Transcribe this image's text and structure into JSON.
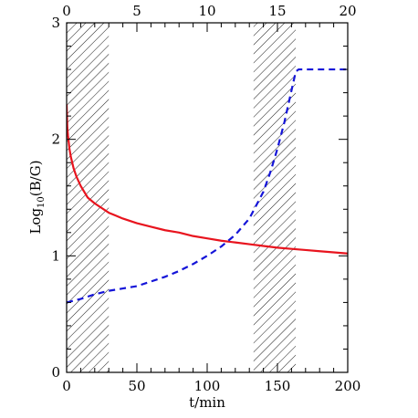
{
  "chart_data": {
    "type": "line",
    "xlabel": "t/min",
    "ylabel": {
      "base": "Log",
      "sub": "10",
      "rest": "(B/G)"
    },
    "xlim": [
      0,
      200
    ],
    "ylim": [
      0,
      3
    ],
    "top_xlim": [
      0,
      20
    ],
    "x_ticks": [
      "0",
      "50",
      "100",
      "150",
      "200"
    ],
    "y_ticks": [
      "0",
      "1",
      "2",
      "3"
    ],
    "top_ticks": [
      "0",
      "5",
      "10",
      "15",
      "20"
    ],
    "shaded_regions": [
      [
        0,
        30
      ],
      [
        133,
        163
      ]
    ],
    "series": [
      {
        "style": "solid",
        "color": "#e8141e",
        "x": [
          0,
          0.5,
          1,
          2,
          3,
          5,
          7,
          10,
          15,
          20,
          30,
          40,
          50,
          60,
          70,
          80,
          90,
          100,
          110,
          120,
          130,
          140,
          150,
          160,
          170,
          180,
          190,
          200
        ],
        "y": [
          2.3,
          2.1,
          2.03,
          1.92,
          1.85,
          1.75,
          1.68,
          1.6,
          1.5,
          1.45,
          1.37,
          1.32,
          1.28,
          1.25,
          1.22,
          1.2,
          1.17,
          1.15,
          1.13,
          1.115,
          1.1,
          1.085,
          1.07,
          1.06,
          1.05,
          1.04,
          1.03,
          1.02
        ]
      },
      {
        "style": "dashed",
        "color": "#1414d8",
        "x": [
          0,
          10,
          20,
          30,
          40,
          50,
          60,
          70,
          80,
          90,
          100,
          110,
          120,
          130,
          140,
          145,
          150,
          155,
          160,
          163,
          165,
          170,
          180,
          190,
          200
        ],
        "y": [
          0.6,
          0.63,
          0.67,
          0.7,
          0.72,
          0.74,
          0.78,
          0.82,
          0.87,
          0.93,
          1.0,
          1.08,
          1.18,
          1.32,
          1.55,
          1.72,
          1.92,
          2.15,
          2.42,
          2.58,
          2.6,
          2.6,
          2.6,
          2.6,
          2.6
        ]
      }
    ]
  }
}
